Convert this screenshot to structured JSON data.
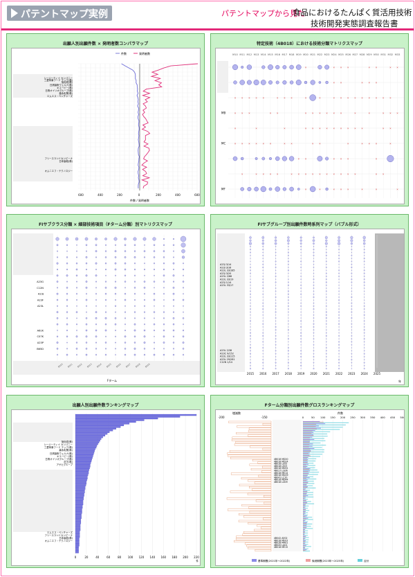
{
  "header": {
    "badge": "パテントマップ実例",
    "lead": "パテントマップから見た",
    "subtitle_line1": "食品におけるたんぱく質活用技術",
    "subtitle_line2": "技術開発実態調査報告書",
    "accent": "#e32878",
    "panel_bg": "#c9f2c9"
  },
  "panels": [
    {
      "title": "出願人別出願件数 × 発明者数コンパラマップ",
      "legend": [
        "件数",
        "発明者数"
      ],
      "xaxis_label": "件数 / 発明者数",
      "ticks": [
        "600",
        "400",
        "200",
        "0",
        "200",
        "400",
        "600"
      ],
      "labels": [
        "シージーティイ カンパニー",
        "三菱商事フード テック(株)",
        "旭化成(株)",
        "日清製粉ウェルナ(株)",
        "キユーピー(株)",
        "日清オイリオグループ(株)",
        "森永乳業(株)",
        "エムエス・ベンチャーズ",
        "フリースランドカンピーナ",
        "日本製紙(株)",
        "オムニエフ・テクノロジー"
      ]
    },
    {
      "title": "特定技術（4B018）における技術分類マトリクスマップ",
      "rows": [
        "MB",
        "MC",
        "MF"
      ]
    },
    {
      "title": "FIサブクラス分類 × 細部技術項目（Fターム分類）別マトリクスマップ",
      "row_labels": [
        "A23G",
        "C12N",
        "A23J",
        "A23F",
        "A23L",
        "A61K",
        "C07K",
        "A23P",
        "B65D"
      ],
      "xaxis_label": "Fターム"
    },
    {
      "title": "FIサブグループ別出願件数時系列マップ（バブル形式）",
      "row_labels": [
        "A23J 3/14",
        "A23J 3/16",
        "A23L 33/185",
        "A23J 3/20",
        "A23L 2/66",
        "A23L 33/19",
        "A23J 1/14",
        "A23L 33/17",
        "A23L 2/38",
        "A23C 9/152",
        "A23L 33/115",
        "A23L 29/281",
        "C12N 1/14"
      ],
      "years": [
        "2015",
        "2016",
        "2017",
        "2018",
        "2019",
        "2020",
        "2021",
        "2022",
        "2023",
        "2024",
        "2025"
      ],
      "year_suffix": "年"
    },
    {
      "title": "出願人別出願件数ランキングマップ",
      "labels": [
        "旭化成(株)",
        "シージーティイ カンパニー",
        "三菱商事フード テック(株)",
        "森永乳業(株)",
        "日清製粉ウェルナ(株)",
        "キユーピー(株)",
        "日清オイリオグループ(株)",
        "花王(株)",
        "アサヒグループ",
        "エムエス・ベンチャーズ",
        "フリースランドカンピーナ",
        "日本製紙(株)",
        "オムニエフ・テクノロジー"
      ],
      "ticks": [
        "0",
        "20",
        "40",
        "60",
        "80",
        "100",
        "120",
        "140",
        "160",
        "180",
        "200",
        "220"
      ],
      "values": [
        220,
        190,
        150,
        125,
        110,
        98,
        88,
        82,
        74,
        68,
        62,
        58,
        54,
        50,
        47,
        45,
        43,
        41,
        39,
        38,
        36,
        35,
        34,
        33,
        32,
        31,
        30,
        29,
        28,
        27,
        27,
        26,
        25,
        24,
        24,
        23,
        22,
        22,
        21,
        20,
        20,
        19,
        18,
        18,
        17,
        17,
        16,
        16,
        15,
        15,
        14,
        14,
        14,
        13,
        13,
        12,
        12,
        12,
        11,
        11,
        11,
        10,
        10,
        10,
        9,
        9,
        9,
        9,
        8,
        8,
        8,
        8,
        7,
        7,
        7,
        7,
        7,
        6,
        6,
        6,
        6
      ]
    },
    {
      "title": "Fターム分類別出願件数グロスランキングマップ",
      "left_ticks": [
        "-200",
        "-150"
      ],
      "right_ticks": [
        "0",
        "50",
        "100",
        "150",
        "200",
        "250",
        "300",
        "350",
        "400",
        "450",
        "500"
      ],
      "left_label": "増減数",
      "right_label": "件数",
      "codes": [
        "4B018 MD20",
        "4B018 MD24",
        "4B018 LE05",
        "4B018 LE03",
        "4B018 MD91",
        "4B017 LG06",
        "4B018 ME14",
        "4B018 MD29",
        "4B041 LC10",
        "4B018 MD44",
        "4B018 LD09"
      ],
      "codes_bottom": [
        "4B042 AE02",
        "4B018 ME03",
        "4B018 MA01",
        "4B020 LA01",
        "4B018 ME15"
      ],
      "legend": [
        "基準期間(2021年〜2022年)",
        "後続期間(2023年〜2025年)",
        "合計"
      ]
    }
  ]
}
